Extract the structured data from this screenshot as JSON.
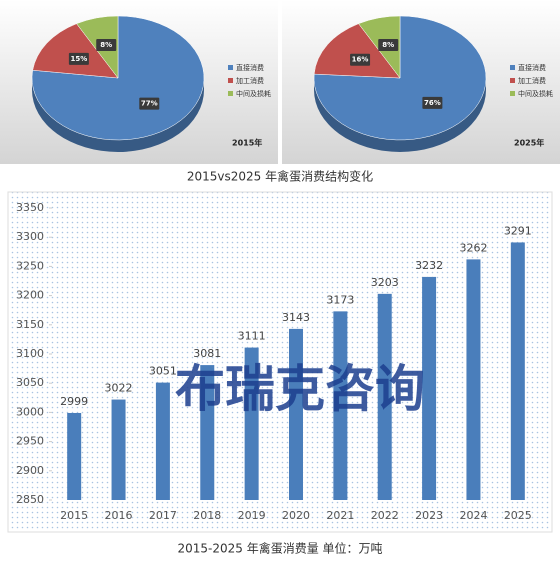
{
  "chart_data": [
    {
      "type": "pie",
      "title": "2015vs2025 年禽蛋消费结构变化",
      "subtitle": "2015年",
      "categories": [
        "直接消费",
        "加工消费",
        "中间及损耗"
      ],
      "values": [
        77,
        15,
        8
      ],
      "value_labels": [
        "77%",
        "15%",
        "8%"
      ],
      "colors": [
        "#4f81bd",
        "#c0504d",
        "#9bbb59"
      ]
    },
    {
      "type": "pie",
      "subtitle": "2025年",
      "categories": [
        "直接消费",
        "加工消费",
        "中间及损耗"
      ],
      "values": [
        76,
        16,
        8
      ],
      "value_labels": [
        "76%",
        "16%",
        "8%"
      ],
      "colors": [
        "#4f81bd",
        "#c0504d",
        "#9bbb59"
      ]
    },
    {
      "type": "bar",
      "title": "2015-2025 年禽蛋消费量 单位：万吨",
      "watermark": "布瑞克咨询",
      "categories": [
        "2015",
        "2016",
        "2017",
        "2018",
        "2019",
        "2020",
        "2021",
        "2022",
        "2023",
        "2024",
        "2025"
      ],
      "values": [
        2999,
        3022,
        3051,
        3081,
        3111,
        3143,
        3173,
        3203,
        3232,
        3262,
        3291
      ],
      "color": "#4a7ebb",
      "ylim": [
        2850,
        3350
      ],
      "yticks": [
        2850,
        2900,
        2950,
        3000,
        3050,
        3100,
        3150,
        3200,
        3250,
        3300,
        3350
      ]
    }
  ]
}
